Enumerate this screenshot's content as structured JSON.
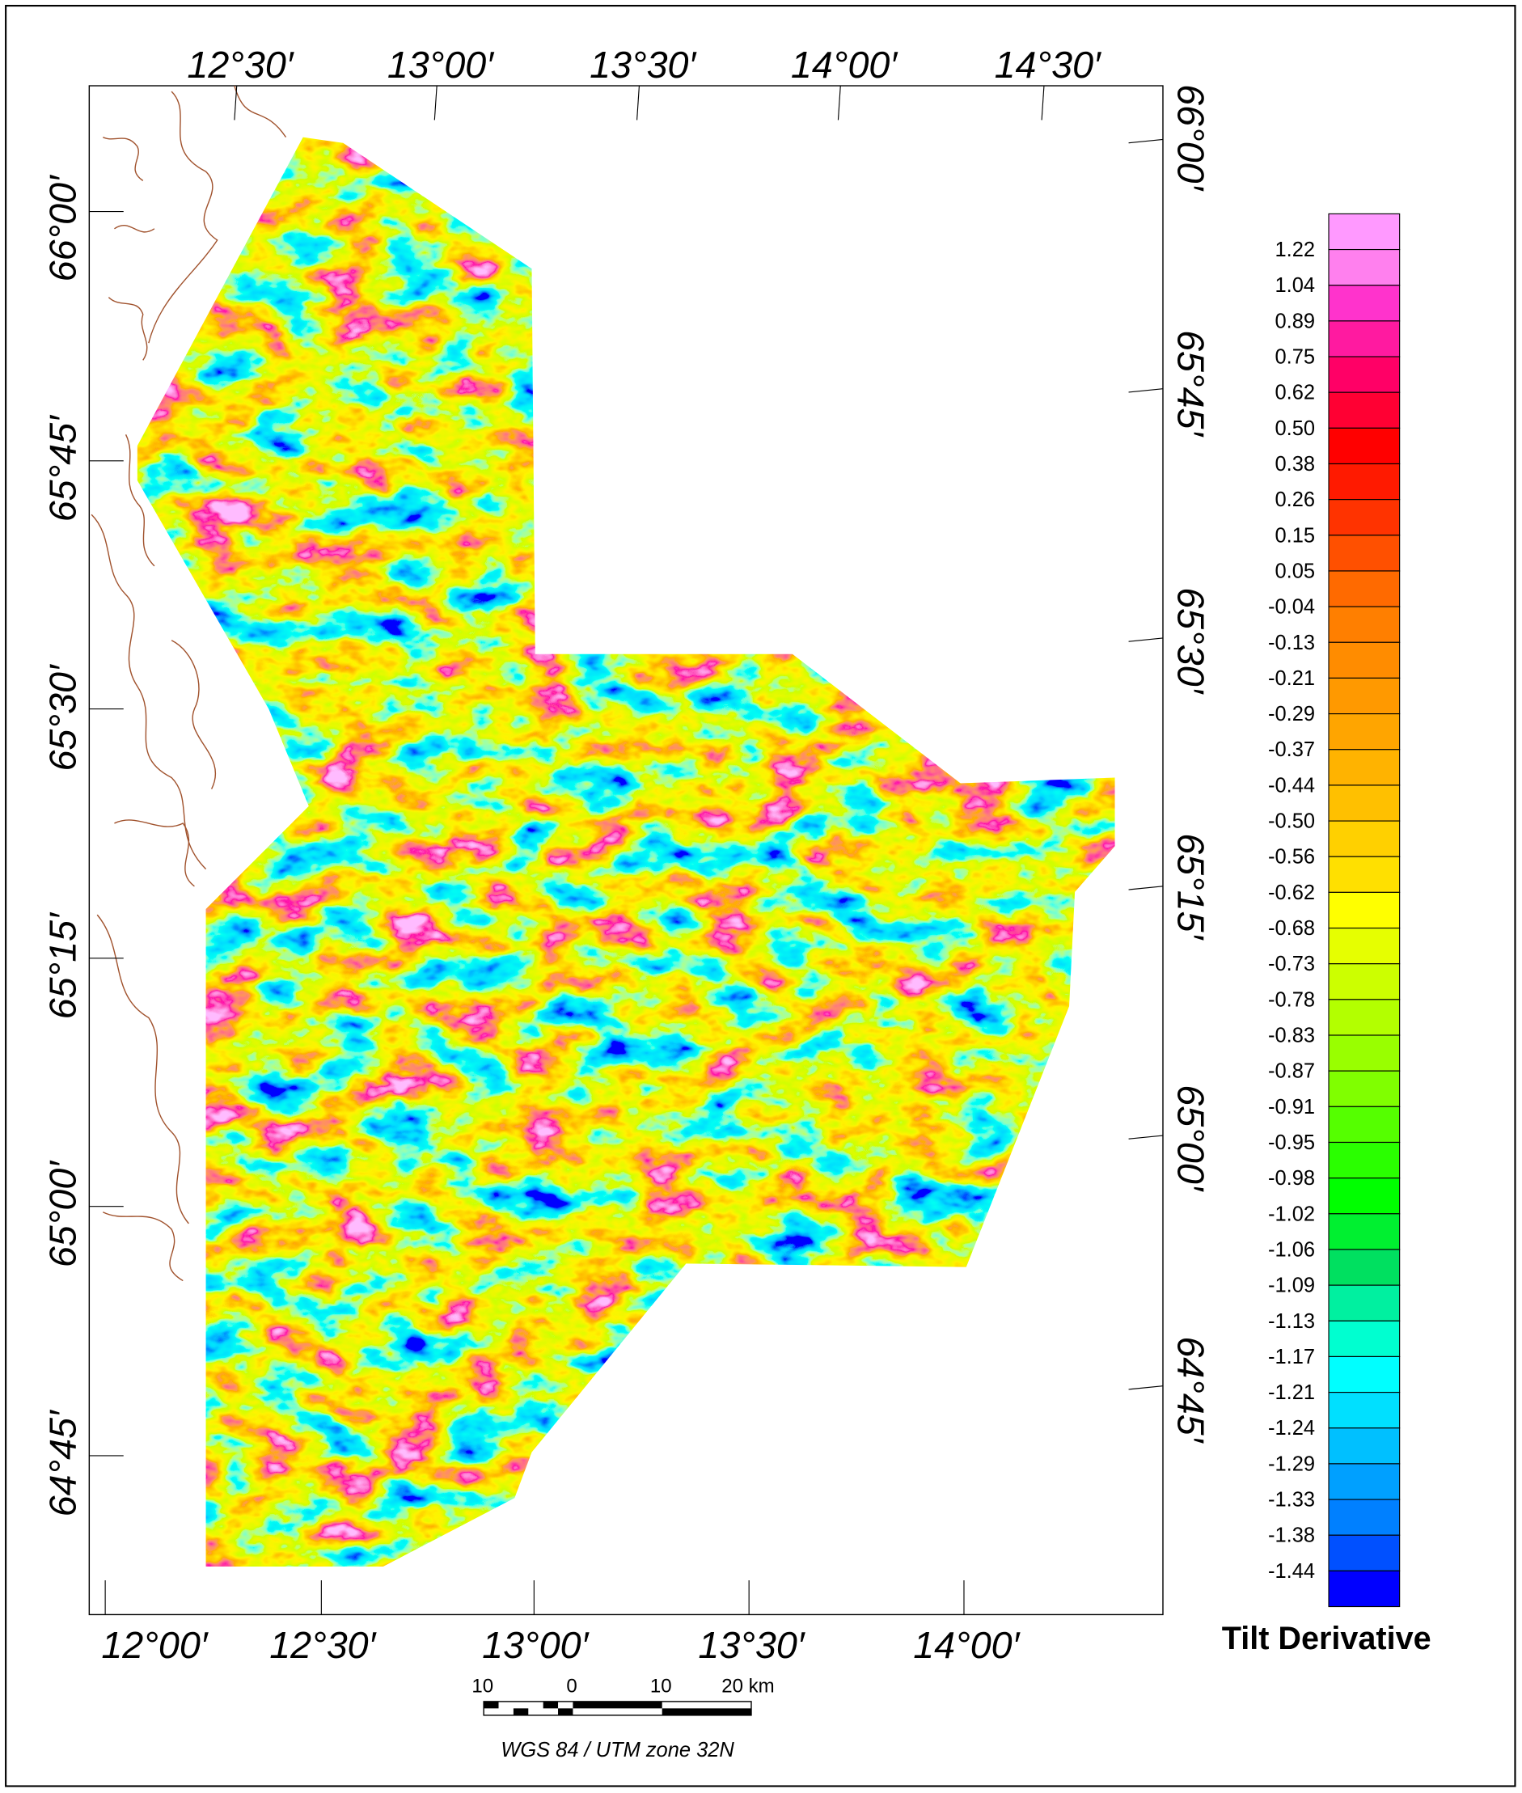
{
  "map": {
    "top_labels": [
      "12°30′",
      "13°00′",
      "13°30′",
      "14°00′",
      "14°30′"
    ],
    "bottom_labels": [
      "12°00′",
      "12°30′",
      "13°00′",
      "13°30′",
      "14°00′"
    ],
    "left_labels": [
      "66°00′",
      "65°45′",
      "65°30′",
      "65°15′",
      "65°00′",
      "64°45′"
    ],
    "right_labels": [
      "66°00′",
      "65°45′",
      "65°30′",
      "65°15′",
      "65°00′",
      "64°45′"
    ]
  },
  "legend": {
    "title": "Tilt Derivative",
    "labels": [
      "1.22",
      "1.04",
      "0.89",
      "0.75",
      "0.62",
      "0.50",
      "0.38",
      "0.26",
      "0.15",
      "0.05",
      "-0.04",
      "-0.13",
      "-0.21",
      "-0.29",
      "-0.37",
      "-0.44",
      "-0.50",
      "-0.56",
      "-0.62",
      "-0.68",
      "-0.73",
      "-0.78",
      "-0.83",
      "-0.87",
      "-0.91",
      "-0.95",
      "-0.98",
      "-1.02",
      "-1.06",
      "-1.09",
      "-1.13",
      "-1.17",
      "-1.21",
      "-1.24",
      "-1.29",
      "-1.33",
      "-1.38",
      "-1.44"
    ],
    "colors": [
      "#ff99ff",
      "#ff80ee",
      "#ff33cc",
      "#ff1aa0",
      "#ff0066",
      "#ff0033",
      "#ff0000",
      "#ff1a00",
      "#ff3300",
      "#ff5000",
      "#ff6a00",
      "#ff7f00",
      "#ff8c00",
      "#ff9900",
      "#ffa500",
      "#ffb300",
      "#ffc000",
      "#ffd000",
      "#ffe000",
      "#ffff00",
      "#e6ff00",
      "#ccff00",
      "#b3ff00",
      "#99ff00",
      "#80ff00",
      "#55ff00",
      "#2aff00",
      "#00ff00",
      "#00f030",
      "#00e060",
      "#00f0a0",
      "#00ffd0",
      "#00ffff",
      "#00e0ff",
      "#00c0ff",
      "#00a0ff",
      "#0080ff",
      "#0050ff",
      "#0000ff"
    ]
  },
  "scale_bar": {
    "labels": [
      "10",
      "0",
      "10",
      "20 km"
    ]
  },
  "projection": "WGS 84 / UTM zone 32N"
}
